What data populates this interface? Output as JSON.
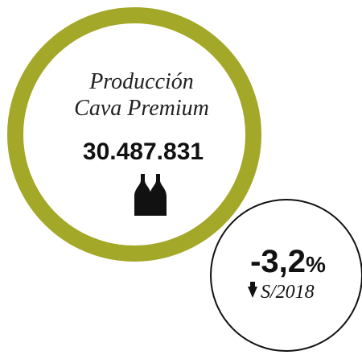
{
  "main": {
    "title_line_1": "Producción",
    "title_line_2": "Cava Premium",
    "value": "30.487.831"
  },
  "change": {
    "value": "-3,2",
    "unit": "%",
    "comparison": "S/2018"
  }
}
